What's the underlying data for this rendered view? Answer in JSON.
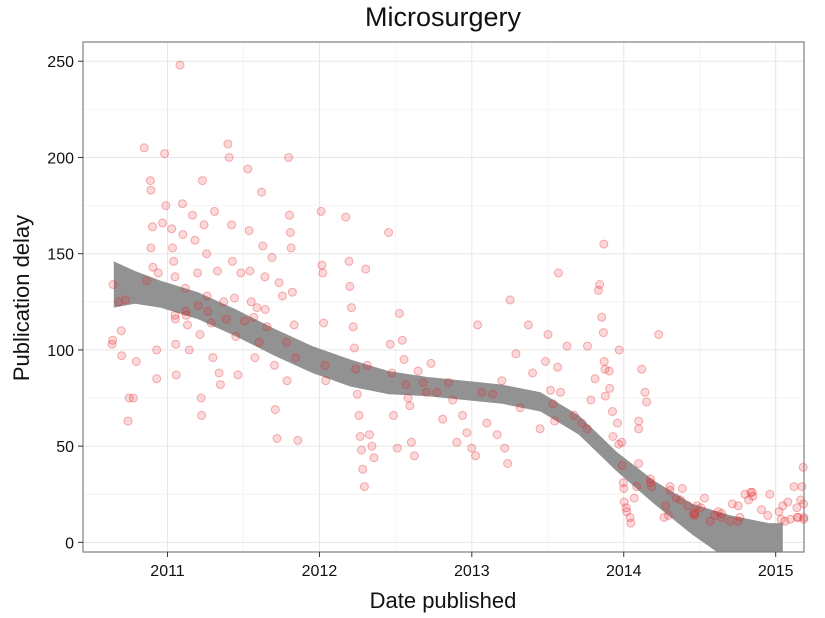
{
  "chart_data": {
    "type": "scatter",
    "title": "Microsurgery",
    "xlabel": "Date published",
    "ylabel": "Publication delay",
    "xlim": [
      "2010-06-12",
      "2015-03-10"
    ],
    "ylim": [
      -5,
      260
    ],
    "x_ticks": [
      {
        "date": "2011-01-01",
        "label": "2011"
      },
      {
        "date": "2012-01-01",
        "label": "2012"
      },
      {
        "date": "2013-01-01",
        "label": "2013"
      },
      {
        "date": "2014-01-01",
        "label": "2014"
      },
      {
        "date": "2015-01-01",
        "label": "2015"
      }
    ],
    "y_ticks": [
      0,
      50,
      100,
      150,
      200,
      250
    ],
    "grid": true,
    "legend": "none",
    "point_color": "#e8262a",
    "smooth_color": "#8c8c8c",
    "series": [
      {
        "points": [
          [
            "2010-08-21",
            103
          ],
          [
            "2010-08-22",
            105
          ],
          [
            "2010-08-23",
            134
          ],
          [
            "2010-09-06",
            125
          ],
          [
            "2010-09-12",
            110
          ],
          [
            "2010-09-13",
            97
          ],
          [
            "2010-09-22",
            126
          ],
          [
            "2010-09-28",
            63
          ],
          [
            "2010-10-01",
            75
          ],
          [
            "2010-10-11",
            75
          ],
          [
            "2010-10-18",
            94
          ],
          [
            "2010-11-06",
            205
          ],
          [
            "2010-11-12",
            136
          ],
          [
            "2010-11-21",
            188
          ],
          [
            "2010-11-22",
            183
          ],
          [
            "2010-11-22",
            153
          ],
          [
            "2010-11-26",
            164
          ],
          [
            "2010-11-27",
            143
          ],
          [
            "2010-12-06",
            100
          ],
          [
            "2010-12-06",
            85
          ],
          [
            "2010-12-10",
            140
          ],
          [
            "2010-12-20",
            166
          ],
          [
            "2010-12-25",
            202
          ],
          [
            "2010-12-28",
            175
          ],
          [
            "2011-01-11",
            163
          ],
          [
            "2011-01-13",
            153
          ],
          [
            "2011-01-16",
            146
          ],
          [
            "2011-01-19",
            138
          ],
          [
            "2011-01-19",
            118
          ],
          [
            "2011-01-20",
            116
          ],
          [
            "2011-01-21",
            103
          ],
          [
            "2011-01-22",
            87
          ],
          [
            "2011-01-31",
            248
          ],
          [
            "2011-02-06",
            176
          ],
          [
            "2011-02-07",
            160
          ],
          [
            "2011-02-13",
            132
          ],
          [
            "2011-02-14",
            120
          ],
          [
            "2011-02-15",
            118
          ],
          [
            "2011-02-18",
            113
          ],
          [
            "2011-02-22",
            100
          ],
          [
            "2011-03-02",
            170
          ],
          [
            "2011-03-08",
            157
          ],
          [
            "2011-03-14",
            140
          ],
          [
            "2011-03-16",
            123
          ],
          [
            "2011-03-20",
            108
          ],
          [
            "2011-03-23",
            75
          ],
          [
            "2011-03-24",
            66
          ],
          [
            "2011-03-26",
            188
          ],
          [
            "2011-03-30",
            165
          ],
          [
            "2011-04-05",
            150
          ],
          [
            "2011-04-06",
            128
          ],
          [
            "2011-04-08",
            120
          ],
          [
            "2011-04-16",
            114
          ],
          [
            "2011-04-20",
            96
          ],
          [
            "2011-04-24",
            172
          ],
          [
            "2011-05-01",
            141
          ],
          [
            "2011-05-05",
            88
          ],
          [
            "2011-05-08",
            82
          ],
          [
            "2011-05-16",
            125
          ],
          [
            "2011-05-22",
            116
          ],
          [
            "2011-05-26",
            207
          ],
          [
            "2011-05-29",
            200
          ],
          [
            "2011-06-04",
            165
          ],
          [
            "2011-06-06",
            146
          ],
          [
            "2011-06-11",
            127
          ],
          [
            "2011-06-14",
            107
          ],
          [
            "2011-06-19",
            87
          ],
          [
            "2011-06-26",
            140
          ],
          [
            "2011-07-05",
            115
          ],
          [
            "2011-07-13",
            194
          ],
          [
            "2011-07-16",
            162
          ],
          [
            "2011-07-18",
            141
          ],
          [
            "2011-07-21",
            125
          ],
          [
            "2011-07-27",
            117
          ],
          [
            "2011-07-30",
            96
          ],
          [
            "2011-08-04",
            122
          ],
          [
            "2011-08-09",
            104
          ],
          [
            "2011-08-15",
            182
          ],
          [
            "2011-08-18",
            154
          ],
          [
            "2011-08-23",
            138
          ],
          [
            "2011-08-24",
            121
          ],
          [
            "2011-08-28",
            112
          ],
          [
            "2011-09-09",
            148
          ],
          [
            "2011-09-15",
            92
          ],
          [
            "2011-09-17",
            69
          ],
          [
            "2011-09-21",
            54
          ],
          [
            "2011-09-26",
            135
          ],
          [
            "2011-10-04",
            128
          ],
          [
            "2011-10-14",
            104
          ],
          [
            "2011-10-15",
            84
          ],
          [
            "2011-10-19",
            200
          ],
          [
            "2011-10-21",
            170
          ],
          [
            "2011-10-23",
            161
          ],
          [
            "2011-10-25",
            153
          ],
          [
            "2011-10-28",
            130
          ],
          [
            "2011-11-01",
            113
          ],
          [
            "2011-11-05",
            96
          ],
          [
            "2011-11-10",
            53
          ],
          [
            "2012-01-05",
            172
          ],
          [
            "2012-01-07",
            144
          ],
          [
            "2012-01-09",
            140
          ],
          [
            "2012-01-11",
            114
          ],
          [
            "2012-01-14",
            92
          ],
          [
            "2012-01-16",
            84
          ],
          [
            "2012-03-04",
            169
          ],
          [
            "2012-03-12",
            146
          ],
          [
            "2012-03-14",
            133
          ],
          [
            "2012-03-18",
            122
          ],
          [
            "2012-03-22",
            112
          ],
          [
            "2012-03-25",
            101
          ],
          [
            "2012-03-28",
            90
          ],
          [
            "2012-04-01",
            77
          ],
          [
            "2012-04-05",
            66
          ],
          [
            "2012-04-08",
            55
          ],
          [
            "2012-04-11",
            48
          ],
          [
            "2012-04-14",
            38
          ],
          [
            "2012-04-18",
            29
          ],
          [
            "2012-04-21",
            142
          ],
          [
            "2012-04-25",
            92
          ],
          [
            "2012-04-30",
            56
          ],
          [
            "2012-05-06",
            50
          ],
          [
            "2012-05-11",
            44
          ],
          [
            "2012-06-15",
            161
          ],
          [
            "2012-06-19",
            103
          ],
          [
            "2012-06-23",
            88
          ],
          [
            "2012-06-27",
            66
          ],
          [
            "2012-07-06",
            49
          ],
          [
            "2012-07-11",
            119
          ],
          [
            "2012-07-18",
            105
          ],
          [
            "2012-07-22",
            95
          ],
          [
            "2012-07-27",
            82
          ],
          [
            "2012-08-01",
            75
          ],
          [
            "2012-08-05",
            71
          ],
          [
            "2012-08-09",
            52
          ],
          [
            "2012-08-16",
            45
          ],
          [
            "2012-08-25",
            89
          ],
          [
            "2012-09-06",
            83
          ],
          [
            "2012-09-14",
            78
          ],
          [
            "2012-09-25",
            93
          ],
          [
            "2012-10-09",
            78
          ],
          [
            "2012-10-23",
            64
          ],
          [
            "2012-11-06",
            83
          ],
          [
            "2012-11-16",
            74
          ],
          [
            "2012-11-26",
            52
          ],
          [
            "2012-12-10",
            66
          ],
          [
            "2012-12-20",
            57
          ],
          [
            "2013-01-01",
            49
          ],
          [
            "2013-01-10",
            45
          ],
          [
            "2013-01-15",
            113
          ],
          [
            "2013-01-25",
            78
          ],
          [
            "2013-02-06",
            62
          ],
          [
            "2013-02-20",
            77
          ],
          [
            "2013-03-03",
            56
          ],
          [
            "2013-03-14",
            84
          ],
          [
            "2013-03-21",
            49
          ],
          [
            "2013-03-28",
            41
          ],
          [
            "2013-04-03",
            126
          ],
          [
            "2013-04-17",
            98
          ],
          [
            "2013-04-27",
            70
          ],
          [
            "2013-05-17",
            113
          ],
          [
            "2013-05-27",
            88
          ],
          [
            "2013-06-14",
            59
          ],
          [
            "2013-06-27",
            94
          ],
          [
            "2013-07-03",
            108
          ],
          [
            "2013-07-09",
            79
          ],
          [
            "2013-07-15",
            72
          ],
          [
            "2013-07-19",
            63
          ],
          [
            "2013-07-26",
            91
          ],
          [
            "2013-07-28",
            140
          ],
          [
            "2013-08-02",
            78
          ],
          [
            "2013-08-18",
            102
          ],
          [
            "2013-09-04",
            66
          ],
          [
            "2013-09-22",
            62
          ],
          [
            "2013-10-05",
            59
          ],
          [
            "2013-10-06",
            102
          ],
          [
            "2013-10-14",
            74
          ],
          [
            "2013-10-24",
            85
          ],
          [
            "2013-11-01",
            131
          ],
          [
            "2013-11-04",
            134
          ],
          [
            "2013-11-09",
            117
          ],
          [
            "2013-11-13",
            109
          ],
          [
            "2013-11-14",
            155
          ],
          [
            "2013-11-15",
            94
          ],
          [
            "2013-11-17",
            90
          ],
          [
            "2013-11-18",
            76
          ],
          [
            "2013-11-27",
            89
          ],
          [
            "2013-11-28",
            80
          ],
          [
            "2013-12-05",
            68
          ],
          [
            "2013-12-06",
            55
          ],
          [
            "2013-12-17",
            62
          ],
          [
            "2013-12-20",
            51
          ],
          [
            "2013-12-21",
            100
          ],
          [
            "2013-12-27",
            52
          ],
          [
            "2013-12-28",
            40
          ],
          [
            "2013-12-31",
            31
          ],
          [
            "2014-01-01",
            28
          ],
          [
            "2014-01-02",
            21
          ],
          [
            "2014-01-07",
            18
          ],
          [
            "2014-01-08",
            16
          ],
          [
            "2014-01-16",
            13
          ],
          [
            "2014-01-18",
            10
          ],
          [
            "2014-01-26",
            23
          ],
          [
            "2014-02-01",
            29
          ],
          [
            "2014-02-06",
            41
          ],
          [
            "2014-02-06",
            59
          ],
          [
            "2014-02-06",
            63
          ],
          [
            "2014-02-13",
            90
          ],
          [
            "2014-02-21",
            78
          ],
          [
            "2014-02-25",
            73
          ],
          [
            "2014-03-06",
            33
          ],
          [
            "2014-03-06",
            31
          ],
          [
            "2014-03-09",
            29
          ],
          [
            "2014-03-26",
            108
          ],
          [
            "2014-04-08",
            13
          ],
          [
            "2014-04-12",
            19
          ],
          [
            "2014-04-18",
            14
          ],
          [
            "2014-04-22",
            27
          ],
          [
            "2014-04-22",
            29
          ],
          [
            "2014-05-07",
            23
          ],
          [
            "2014-05-17",
            22
          ],
          [
            "2014-05-22",
            28
          ],
          [
            "2014-06-04",
            19
          ],
          [
            "2014-06-18",
            15
          ],
          [
            "2014-06-20",
            14
          ],
          [
            "2014-06-21",
            15
          ],
          [
            "2014-06-26",
            19
          ],
          [
            "2014-07-05",
            18
          ],
          [
            "2014-07-14",
            23
          ],
          [
            "2014-07-28",
            11
          ],
          [
            "2014-08-07",
            14
          ],
          [
            "2014-08-16",
            16
          ],
          [
            "2014-08-23",
            13
          ],
          [
            "2014-08-24",
            15
          ],
          [
            "2014-09-13",
            11
          ],
          [
            "2014-09-19",
            20
          ],
          [
            "2014-10-02",
            11
          ],
          [
            "2014-10-03",
            19
          ],
          [
            "2014-10-07",
            13
          ],
          [
            "2014-10-19",
            25
          ],
          [
            "2014-10-28",
            22
          ],
          [
            "2014-11-02",
            26
          ],
          [
            "2014-11-06",
            26
          ],
          [
            "2014-11-07",
            24
          ],
          [
            "2014-11-28",
            17
          ],
          [
            "2014-12-13",
            14
          ],
          [
            "2014-12-18",
            25
          ],
          [
            "2015-01-09",
            16
          ],
          [
            "2015-01-14",
            12
          ],
          [
            "2015-01-18",
            19
          ],
          [
            "2015-01-23",
            11
          ],
          [
            "2015-01-30",
            21
          ],
          [
            "2015-02-05",
            12
          ],
          [
            "2015-02-14",
            29
          ],
          [
            "2015-02-21",
            18
          ],
          [
            "2015-02-22",
            13
          ],
          [
            "2015-02-24",
            13
          ],
          [
            "2015-03-02",
            22
          ],
          [
            "2015-03-05",
            29
          ],
          [
            "2015-03-08",
            39
          ],
          [
            "2015-03-09",
            20
          ],
          [
            "2015-03-09",
            12
          ],
          [
            "2015-03-10",
            13
          ]
        ]
      }
    ],
    "smooth": {
      "x": [
        "2010-08-25",
        "2010-10-15",
        "2010-12-15",
        "2011-03-15",
        "2011-06-15",
        "2011-09-15",
        "2011-12-15",
        "2012-03-15",
        "2012-06-15",
        "2012-09-15",
        "2012-12-15",
        "2013-03-15",
        "2013-06-15",
        "2013-09-15",
        "2013-12-15",
        "2014-03-15",
        "2014-06-15",
        "2014-09-15",
        "2014-12-15",
        "2015-01-18"
      ],
      "lower": [
        122,
        124,
        122,
        116,
        107,
        97,
        88,
        81,
        77,
        76,
        74,
        72,
        68,
        56,
        37,
        20,
        4,
        -10,
        -26,
        -32
      ],
      "upper": [
        146,
        141,
        136,
        130,
        121,
        111,
        102,
        95,
        89,
        86,
        84,
        82,
        78,
        66,
        47,
        32,
        20,
        14,
        10,
        10
      ]
    }
  }
}
